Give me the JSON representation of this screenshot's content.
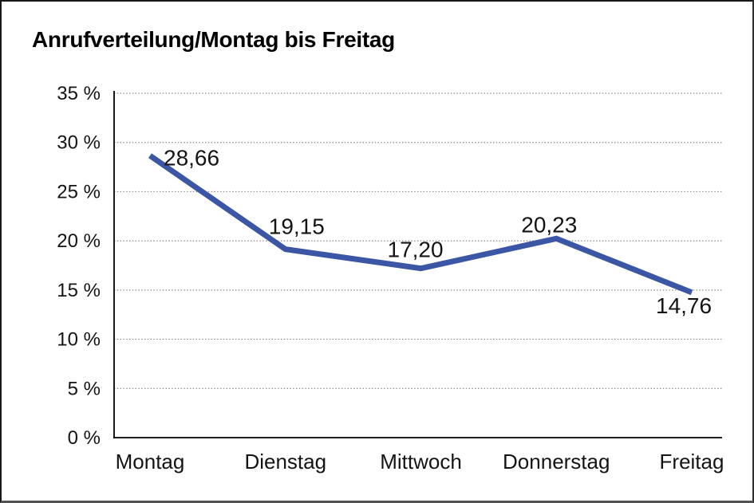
{
  "chart_data": {
    "type": "line",
    "title": "Anrufverteilung/Montag bis Freitag",
    "categories": [
      "Montag",
      "Dienstag",
      "Mittwoch",
      "Donnerstag",
      "Freitag"
    ],
    "values": [
      28.66,
      19.15,
      17.2,
      20.23,
      14.76
    ],
    "data_labels": [
      "28,66",
      "19,15",
      "17,20",
      "20,23",
      "14,76"
    ],
    "xlabel": "",
    "ylabel": "",
    "ylim": [
      0,
      35
    ],
    "ytick_step": 5,
    "ytick_labels": [
      "0 %",
      "5 %",
      "10 %",
      "15 %",
      "20 %",
      "25 %",
      "30 %",
      "35 %"
    ],
    "grid": "horizontal-dotted",
    "legend": "none",
    "colors": {
      "line": "#3A56A4",
      "axis": "#000000",
      "gridline": "#828282",
      "label": "#141414",
      "background": "#ffffff"
    }
  }
}
